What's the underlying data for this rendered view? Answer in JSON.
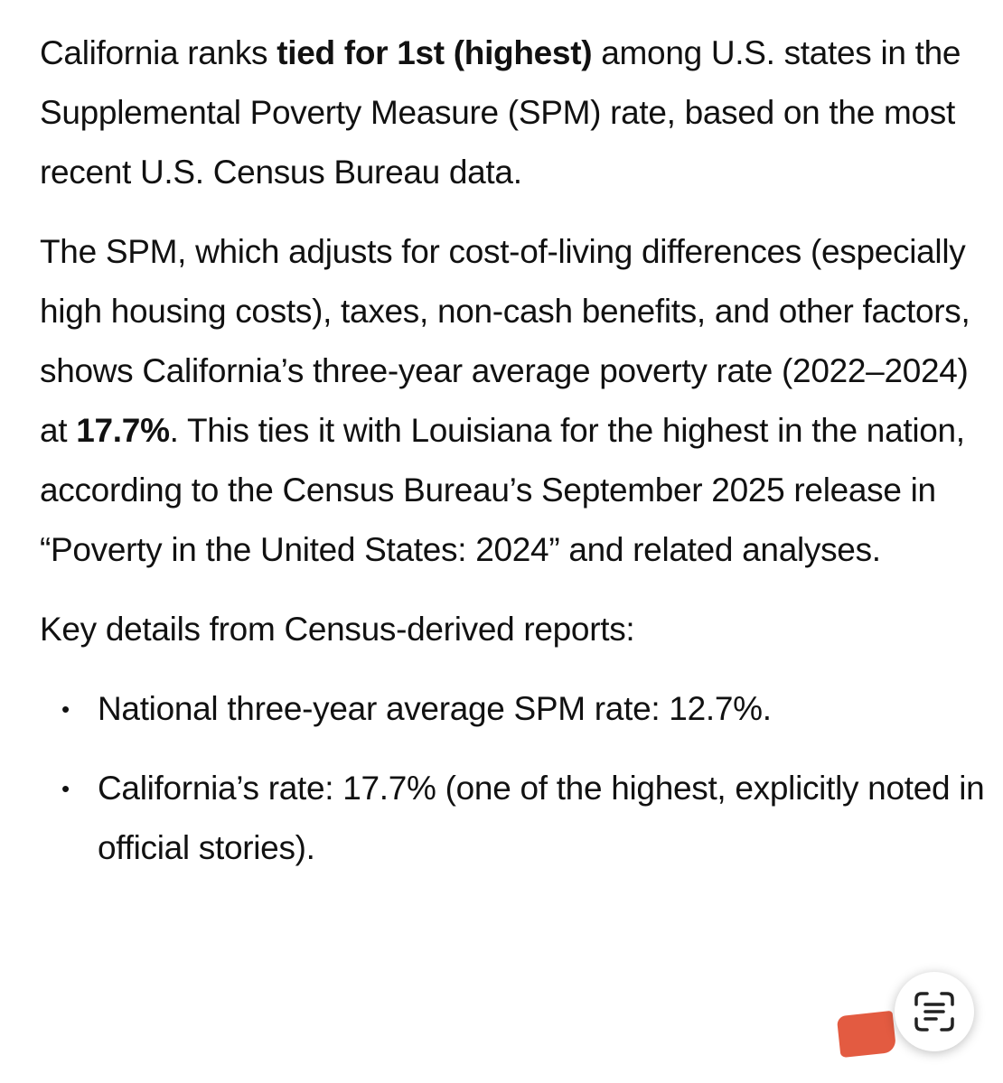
{
  "paragraphs": [
    [
      {
        "text": "California ranks "
      },
      {
        "text": "tied for 1st (highest)",
        "bold": true
      },
      {
        "text": " among U.S. states in the Supplemental Poverty Measure (SPM) rate, based on the most recent U.S. Census Bureau data."
      }
    ],
    [
      {
        "text": "The SPM, which adjusts for cost-of-living differences (especially high housing costs), taxes, non-cash benefits, and other factors, shows California’s three-year average poverty rate (2022–2024) at "
      },
      {
        "text": "17.7%",
        "bold": true
      },
      {
        "text": ". This ties it with Louisiana for the highest in the nation, according to the Census Bureau’s September 2025 release in “Poverty in the United States: 2024” and related analyses."
      }
    ],
    [
      {
        "text": "Key details from Census-derived reports:"
      }
    ]
  ],
  "bullets": [
    "National three-year average SPM rate: 12.7%.",
    "California’s rate: 17.7% (one of the highest, explicitly noted in official stories)."
  ]
}
